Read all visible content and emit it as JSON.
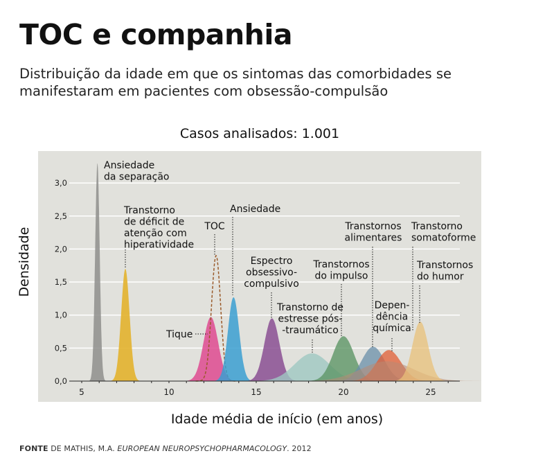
{
  "title": "TOC e companhia",
  "subtitle": "Distribuição da idade em que os sintomas das comorbidades se manifestaram em pacientes com obsessão-compulsão",
  "cases_label": "Casos analisados: 1.001",
  "source": {
    "prefix": "FONTE",
    "author": "DE MATHIS, M.A.",
    "journal": "EUROPEAN NEUROPSYCHOPHARMACOLOGY",
    "year": ". 2012"
  },
  "chart_data": {
    "type": "area",
    "xlabel": "Idade média de início (em anos)",
    "ylabel": "Densidade",
    "xlim": [
      4,
      27
    ],
    "ylim": [
      0,
      3.3
    ],
    "x_ticks": [
      5,
      10,
      15,
      20,
      25
    ],
    "y_ticks": [
      "0,0",
      "0,5",
      "1,0",
      "1,5",
      "2,0",
      "2,5",
      "3,0"
    ],
    "grid": true,
    "background": "#e1e1dc",
    "series": [
      {
        "name": "Ansiedade da separação",
        "label_lines": [
          "Ansiedade",
          "da separação"
        ],
        "peak_x": 5.9,
        "peak_density": 3.3,
        "color": "#8e8e8c",
        "opacity": 0.85
      },
      {
        "name": "Transtorno de déficit de atenção com hiperatividade",
        "label_lines": [
          "Transtorno",
          "de déficit de",
          "atenção com",
          "hiperatividade"
        ],
        "peak_x": 7.5,
        "peak_density": 1.7,
        "color": "#e3b22e",
        "opacity": 0.9
      },
      {
        "name": "Tique",
        "label_lines": [
          "Tique"
        ],
        "peak_x": 12.4,
        "peak_density": 0.97,
        "color": "#de4a90",
        "opacity": 0.85
      },
      {
        "name": "TOC",
        "label_lines": [
          "TOC"
        ],
        "peak_x": 12.7,
        "peak_density": 1.9,
        "color": "#9a5a2a",
        "dashed": true
      },
      {
        "name": "Ansiedade",
        "label_lines": [
          "Ansiedade"
        ],
        "peak_x": 13.7,
        "peak_density": 1.27,
        "color": "#3b9fd1",
        "opacity": 0.85
      },
      {
        "name": "Espectro obsessivo-compulsivo",
        "label_lines": [
          "Espectro",
          "obsessivo-",
          "compulsivo"
        ],
        "peak_x": 15.9,
        "peak_density": 0.95,
        "color": "#8a4f93",
        "opacity": 0.85
      },
      {
        "name": "Transtorno de estresse pós-traumático",
        "label_lines": [
          "Transtorno de",
          "estresse pós-",
          "-traumático"
        ],
        "peak_x": 18.2,
        "peak_density": 0.42,
        "color": "#9fc8c2",
        "opacity": 0.8
      },
      {
        "name": "Transtornos do impulso",
        "label_lines": [
          "Transtornos",
          "do impulso"
        ],
        "peak_x": 20.0,
        "peak_density": 0.68,
        "color": "#5e9666",
        "opacity": 0.8
      },
      {
        "name": "Transtornos alimentares",
        "label_lines": [
          "Transtornos",
          "alimentares"
        ],
        "peak_x": 21.7,
        "peak_density": 0.52,
        "color": "#6a8faa",
        "opacity": 0.75
      },
      {
        "name": "Dependência química",
        "label_lines": [
          "Depen-",
          "dência",
          "química"
        ],
        "peak_x": 22.6,
        "peak_density": 0.47,
        "color": "#e05e35",
        "opacity": 0.75
      },
      {
        "name": "Transtorno somatoforme",
        "label_lines": [
          "Transtorno",
          "somatoforme"
        ],
        "peak_x": 22.5,
        "peak_density": 0.3,
        "color": "#b88a74",
        "opacity": 0.55
      },
      {
        "name": "Transtornos do humor",
        "label_lines": [
          "Transtornos",
          "do humor"
        ],
        "peak_x": 24.4,
        "peak_density": 0.9,
        "color": "#e8c07a",
        "opacity": 0.75
      }
    ]
  }
}
